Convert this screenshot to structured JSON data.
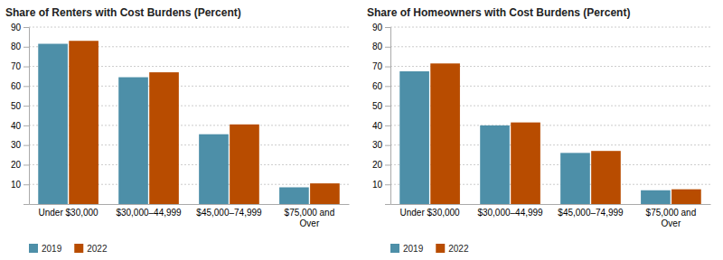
{
  "chart_data": [
    {
      "type": "bar",
      "title": "Share of Renters with Cost Burdens (Percent)",
      "categories": [
        "Under $30,000",
        "$30,000–44,999",
        "$45,000–74,999",
        "$75,000 and\nOver"
      ],
      "series": [
        {
          "name": "2019",
          "color": "#4d8fa8",
          "values": [
            81.5,
            64.5,
            35.5,
            8.5
          ]
        },
        {
          "name": "2022",
          "color": "#b84c00",
          "values": [
            83.0,
            67.0,
            40.5,
            10.5
          ]
        }
      ],
      "ylim": [
        0,
        90
      ],
      "yticks": [
        10,
        20,
        30,
        40,
        50,
        60,
        70,
        80,
        90
      ],
      "grid": true,
      "legend": "bottom"
    },
    {
      "type": "bar",
      "title": "Share of Homeowners with Cost Burdens (Percent)",
      "categories": [
        "Under $30,000",
        "$30,000–44,999",
        "$45,000–74,999",
        "$75,000 and\nOver"
      ],
      "series": [
        {
          "name": "2019",
          "color": "#4d8fa8",
          "values": [
            67.5,
            40.0,
            26.0,
            7.0
          ]
        },
        {
          "name": "2022",
          "color": "#b84c00",
          "values": [
            71.5,
            41.5,
            27.0,
            7.5
          ]
        }
      ],
      "ylim": [
        0,
        90
      ],
      "yticks": [
        10,
        20,
        30,
        40,
        50,
        60,
        70,
        80,
        90
      ],
      "grid": true,
      "legend": "bottom"
    }
  ]
}
